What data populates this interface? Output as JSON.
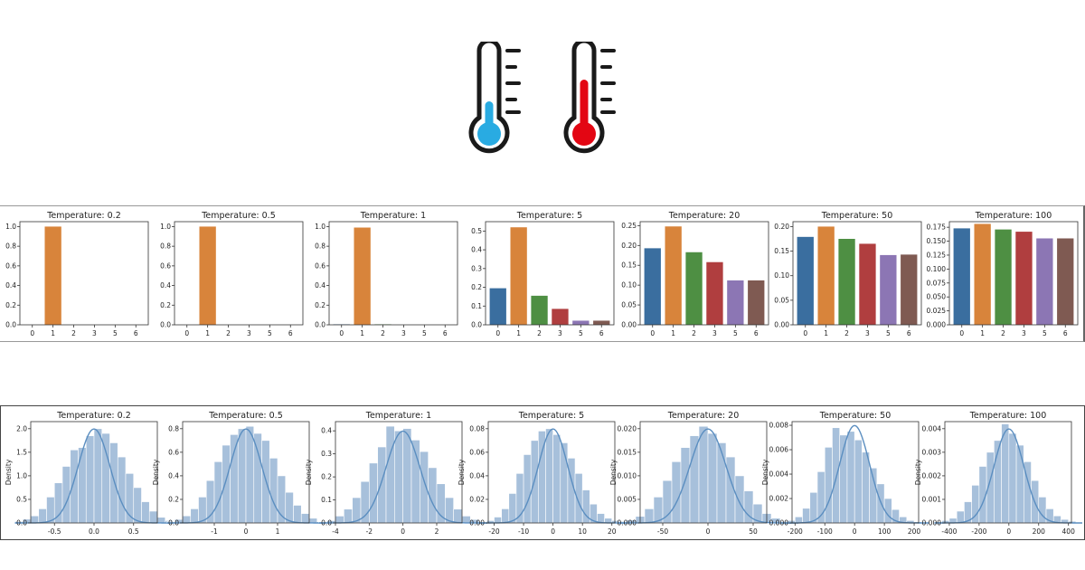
{
  "header": {
    "cold_thermometer_icon": "thermometer-cold-icon",
    "hot_thermometer_icon": "thermometer-hot-icon",
    "cold_color": "#29abe2",
    "hot_color": "#e30613"
  },
  "colors": {
    "bars": [
      "#3a6e9f",
      "#d8843b",
      "#4e8f43",
      "#b03e3f",
      "#8c76b4",
      "#7f5a52"
    ],
    "hist_fill": "#a7c0db",
    "kde_line": "#5b8ec0"
  },
  "chart_data": [
    {
      "type": "bar",
      "title": "Temperature: 0.2",
      "categories": [
        "0",
        "1",
        "2",
        "3",
        "5",
        "6"
      ],
      "values": [
        0,
        1.0,
        0,
        0,
        0,
        0
      ],
      "ylim": [
        0,
        1.05
      ],
      "yticks": [
        "0.0",
        "0.2",
        "0.4",
        "0.6",
        "0.8",
        "1.0"
      ],
      "ytick_values": [
        0,
        0.2,
        0.4,
        0.6,
        0.8,
        1.0
      ]
    },
    {
      "type": "bar",
      "title": "Temperature: 0.5",
      "categories": [
        "0",
        "1",
        "2",
        "3",
        "5",
        "6"
      ],
      "values": [
        0,
        1.0,
        0,
        0,
        0,
        0
      ],
      "ylim": [
        0,
        1.05
      ],
      "yticks": [
        "0.0",
        "0.2",
        "0.4",
        "0.6",
        "0.8",
        "1.0"
      ],
      "ytick_values": [
        0,
        0.2,
        0.4,
        0.6,
        0.8,
        1.0
      ]
    },
    {
      "type": "bar",
      "title": "Temperature: 1",
      "categories": [
        "0",
        "1",
        "2",
        "3",
        "5",
        "6"
      ],
      "values": [
        0.005,
        0.99,
        0.005,
        0,
        0,
        0
      ],
      "ylim": [
        0,
        1.05
      ],
      "yticks": [
        "0.0",
        "0.2",
        "0.4",
        "0.6",
        "0.8",
        "1.0"
      ],
      "ytick_values": [
        0,
        0.2,
        0.4,
        0.6,
        0.8,
        1.0
      ]
    },
    {
      "type": "bar",
      "title": "Temperature: 5",
      "categories": [
        "0",
        "1",
        "2",
        "3",
        "5",
        "6"
      ],
      "values": [
        0.195,
        0.52,
        0.155,
        0.085,
        0.022,
        0.022
      ],
      "ylim": [
        0,
        0.55
      ],
      "yticks": [
        "0.0",
        "0.1",
        "0.2",
        "0.3",
        "0.4",
        "0.5"
      ],
      "ytick_values": [
        0,
        0.1,
        0.2,
        0.3,
        0.4,
        0.5
      ]
    },
    {
      "type": "bar",
      "title": "Temperature: 20",
      "categories": [
        "0",
        "1",
        "2",
        "3",
        "5",
        "6"
      ],
      "values": [
        0.193,
        0.248,
        0.183,
        0.158,
        0.112,
        0.112
      ],
      "ylim": [
        0,
        0.26
      ],
      "yticks": [
        "0.00",
        "0.05",
        "0.10",
        "0.15",
        "0.20",
        "0.25"
      ],
      "ytick_values": [
        0,
        0.05,
        0.1,
        0.15,
        0.2,
        0.25
      ]
    },
    {
      "type": "bar",
      "title": "Temperature: 50",
      "categories": [
        "0",
        "1",
        "2",
        "3",
        "5",
        "6"
      ],
      "values": [
        0.179,
        0.2,
        0.175,
        0.165,
        0.142,
        0.143
      ],
      "ylim": [
        0,
        0.21
      ],
      "yticks": [
        "0.00",
        "0.05",
        "0.10",
        "0.15",
        "0.20"
      ],
      "ytick_values": [
        0,
        0.05,
        0.1,
        0.15,
        0.2
      ]
    },
    {
      "type": "bar",
      "title": "Temperature: 100",
      "categories": [
        "0",
        "1",
        "2",
        "3",
        "5",
        "6"
      ],
      "values": [
        0.173,
        0.181,
        0.171,
        0.167,
        0.155,
        0.155
      ],
      "ylim": [
        0,
        0.185
      ],
      "yticks": [
        "0.000",
        "0.025",
        "0.050",
        "0.075",
        "0.100",
        "0.125",
        "0.150",
        "0.175"
      ],
      "ytick_values": [
        0,
        0.025,
        0.05,
        0.075,
        0.1,
        0.125,
        0.15,
        0.175
      ]
    },
    {
      "type": "area",
      "title": "Temperature: 0.2",
      "ylabel": "Density",
      "sd": 0.2,
      "xlim": [
        -0.8,
        0.8
      ],
      "ymax": 2.15,
      "xticks": [
        "-0.5",
        "0.0",
        "0.5"
      ],
      "xtick_values": [
        -0.5,
        0,
        0.5
      ],
      "yticks": [
        "0.0",
        "0.5",
        "1.0",
        "1.5",
        "2.0"
      ],
      "ytick_values": [
        0,
        0.5,
        1.0,
        1.5,
        2.0
      ],
      "hist": [
        0.03,
        0.08,
        0.15,
        0.3,
        0.55,
        0.85,
        1.2,
        1.55,
        1.6,
        1.85,
        2.0,
        1.9,
        1.7,
        1.4,
        1.05,
        0.75,
        0.45,
        0.25,
        0.12,
        0.05
      ]
    },
    {
      "type": "area",
      "title": "Temperature: 0.5",
      "ylabel": "Density",
      "sd": 0.5,
      "xlim": [
        -2.0,
        2.0
      ],
      "ymax": 0.86,
      "xticks": [
        "-1",
        "0",
        "1"
      ],
      "xtick_values": [
        -1,
        0,
        1
      ],
      "yticks": [
        "0.0",
        "0.2",
        "0.4",
        "0.6",
        "0.8"
      ],
      "ytick_values": [
        0,
        0.2,
        0.4,
        0.6,
        0.8
      ],
      "hist": [
        0.01,
        0.03,
        0.06,
        0.12,
        0.22,
        0.36,
        0.52,
        0.66,
        0.75,
        0.8,
        0.82,
        0.76,
        0.7,
        0.55,
        0.4,
        0.26,
        0.15,
        0.08,
        0.04,
        0.01
      ]
    },
    {
      "type": "area",
      "title": "Temperature: 1",
      "ylabel": "Density",
      "sd": 1.0,
      "xlim": [
        -4.0,
        3.5
      ],
      "ymax": 0.44,
      "xticks": [
        "-4",
        "-2",
        "0",
        "2"
      ],
      "xtick_values": [
        -4,
        -2,
        0,
        2
      ],
      "yticks": [
        "0.0",
        "0.1",
        "0.2",
        "0.3",
        "0.4"
      ],
      "ytick_values": [
        0,
        0.1,
        0.2,
        0.3,
        0.4
      ],
      "hist": [
        0.005,
        0.01,
        0.03,
        0.06,
        0.11,
        0.18,
        0.26,
        0.33,
        0.42,
        0.4,
        0.41,
        0.36,
        0.31,
        0.24,
        0.17,
        0.11,
        0.06,
        0.03,
        0.015,
        0.005
      ]
    },
    {
      "type": "area",
      "title": "Temperature: 5",
      "ylabel": "Density",
      "sd": 5.0,
      "xlim": [
        -22,
        21
      ],
      "ymax": 0.086,
      "xticks": [
        "-20",
        "-10",
        "0",
        "10",
        "20"
      ],
      "xtick_values": [
        -20,
        -10,
        0,
        10,
        20
      ],
      "yticks": [
        "0.00",
        "0.02",
        "0.04",
        "0.06",
        "0.08"
      ],
      "ytick_values": [
        0,
        0.02,
        0.04,
        0.06,
        0.08
      ],
      "hist": [
        0.001,
        0.002,
        0.005,
        0.012,
        0.025,
        0.042,
        0.058,
        0.07,
        0.078,
        0.08,
        0.075,
        0.068,
        0.055,
        0.042,
        0.028,
        0.016,
        0.008,
        0.004,
        0.002,
        0.001
      ]
    },
    {
      "type": "area",
      "title": "Temperature: 20",
      "ylabel": "Density",
      "sd": 20,
      "xlim": [
        -75,
        65
      ],
      "ymax": 0.0215,
      "xticks": [
        "-50",
        "0",
        "50"
      ],
      "xtick_values": [
        -50,
        0,
        50
      ],
      "yticks": [
        "0.000",
        "0.005",
        "0.010",
        "0.015",
        "0.020"
      ],
      "ytick_values": [
        0,
        0.005,
        0.01,
        0.015,
        0.02
      ],
      "hist": [
        0.0003,
        0.0006,
        0.0014,
        0.003,
        0.0055,
        0.009,
        0.013,
        0.016,
        0.0185,
        0.0205,
        0.019,
        0.017,
        0.014,
        0.01,
        0.0068,
        0.004,
        0.002,
        0.001,
        0.0004,
        0.0002
      ]
    },
    {
      "type": "area",
      "title": "Temperature: 50",
      "ylabel": "Density",
      "sd": 50,
      "xlim": [
        -210,
        215
      ],
      "ymax": 0.0083,
      "xticks": [
        "-200",
        "-100",
        "0",
        "100",
        "200"
      ],
      "xtick_values": [
        -200,
        -100,
        0,
        100,
        200
      ],
      "yticks": [
        "0.000",
        "0.002",
        "0.004",
        "0.006",
        "0.008"
      ],
      "ytick_values": [
        0,
        0.002,
        0.004,
        0.006,
        0.008
      ],
      "hist": [
        0.0001,
        0.0002,
        0.0005,
        0.0012,
        0.0025,
        0.0042,
        0.0062,
        0.0078,
        0.0072,
        0.0075,
        0.0068,
        0.0058,
        0.0045,
        0.0032,
        0.002,
        0.0011,
        0.0005,
        0.0002,
        0.0001,
        5e-05
      ]
    },
    {
      "type": "area",
      "title": "Temperature: 100",
      "ylabel": "Density",
      "sd": 100,
      "xlim": [
        -430,
        420
      ],
      "ymax": 0.0043,
      "xticks": [
        "-400",
        "-200",
        "0",
        "200",
        "400"
      ],
      "xtick_values": [
        -400,
        -200,
        0,
        200,
        400
      ],
      "yticks": [
        "0.000",
        "0.001",
        "0.002",
        "0.003",
        "0.004"
      ],
      "ytick_values": [
        0,
        0.001,
        0.002,
        0.003,
        0.004
      ],
      "hist": [
        5e-05,
        0.0001,
        0.0002,
        0.0005,
        0.0009,
        0.0016,
        0.0024,
        0.003,
        0.0035,
        0.0042,
        0.0038,
        0.0033,
        0.0026,
        0.0018,
        0.0011,
        0.0006,
        0.0003,
        0.00015,
        7e-05,
        3e-05
      ]
    }
  ]
}
